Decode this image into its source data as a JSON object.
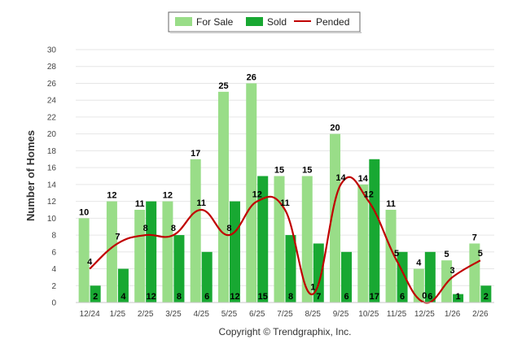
{
  "chart_data": {
    "type": "bar",
    "categories": [
      "12/24",
      "1/25",
      "2/25",
      "3/25",
      "4/25",
      "5/25",
      "6/25",
      "7/25",
      "8/25",
      "9/25",
      "10/25",
      "11/25",
      "12/25",
      "1/26",
      "2/26"
    ],
    "series": [
      {
        "name": "For Sale",
        "kind": "bar",
        "color": "#99dd88",
        "values": [
          10,
          12,
          11,
          12,
          17,
          25,
          26,
          15,
          15,
          20,
          14,
          11,
          4,
          5,
          7
        ]
      },
      {
        "name": "Sold",
        "kind": "bar",
        "color": "#18a832",
        "values": [
          2,
          4,
          12,
          8,
          6,
          12,
          15,
          8,
          7,
          6,
          17,
          6,
          6,
          1,
          2
        ]
      },
      {
        "name": "Pended",
        "kind": "line",
        "color": "#c00000",
        "values": [
          4,
          7,
          8,
          8,
          11,
          8,
          12,
          11,
          1,
          14,
          12,
          5,
          0,
          3,
          5
        ]
      }
    ],
    "ylabel": "Number of Homes",
    "xlabel": "",
    "ylim": [
      0,
      30
    ],
    "yticks": [
      0,
      2,
      4,
      6,
      8,
      10,
      12,
      14,
      16,
      18,
      20,
      22,
      24,
      26,
      28,
      30
    ],
    "grid": true,
    "legend": "top-center",
    "footer": "Copyright © Trendgraphix, Inc."
  }
}
